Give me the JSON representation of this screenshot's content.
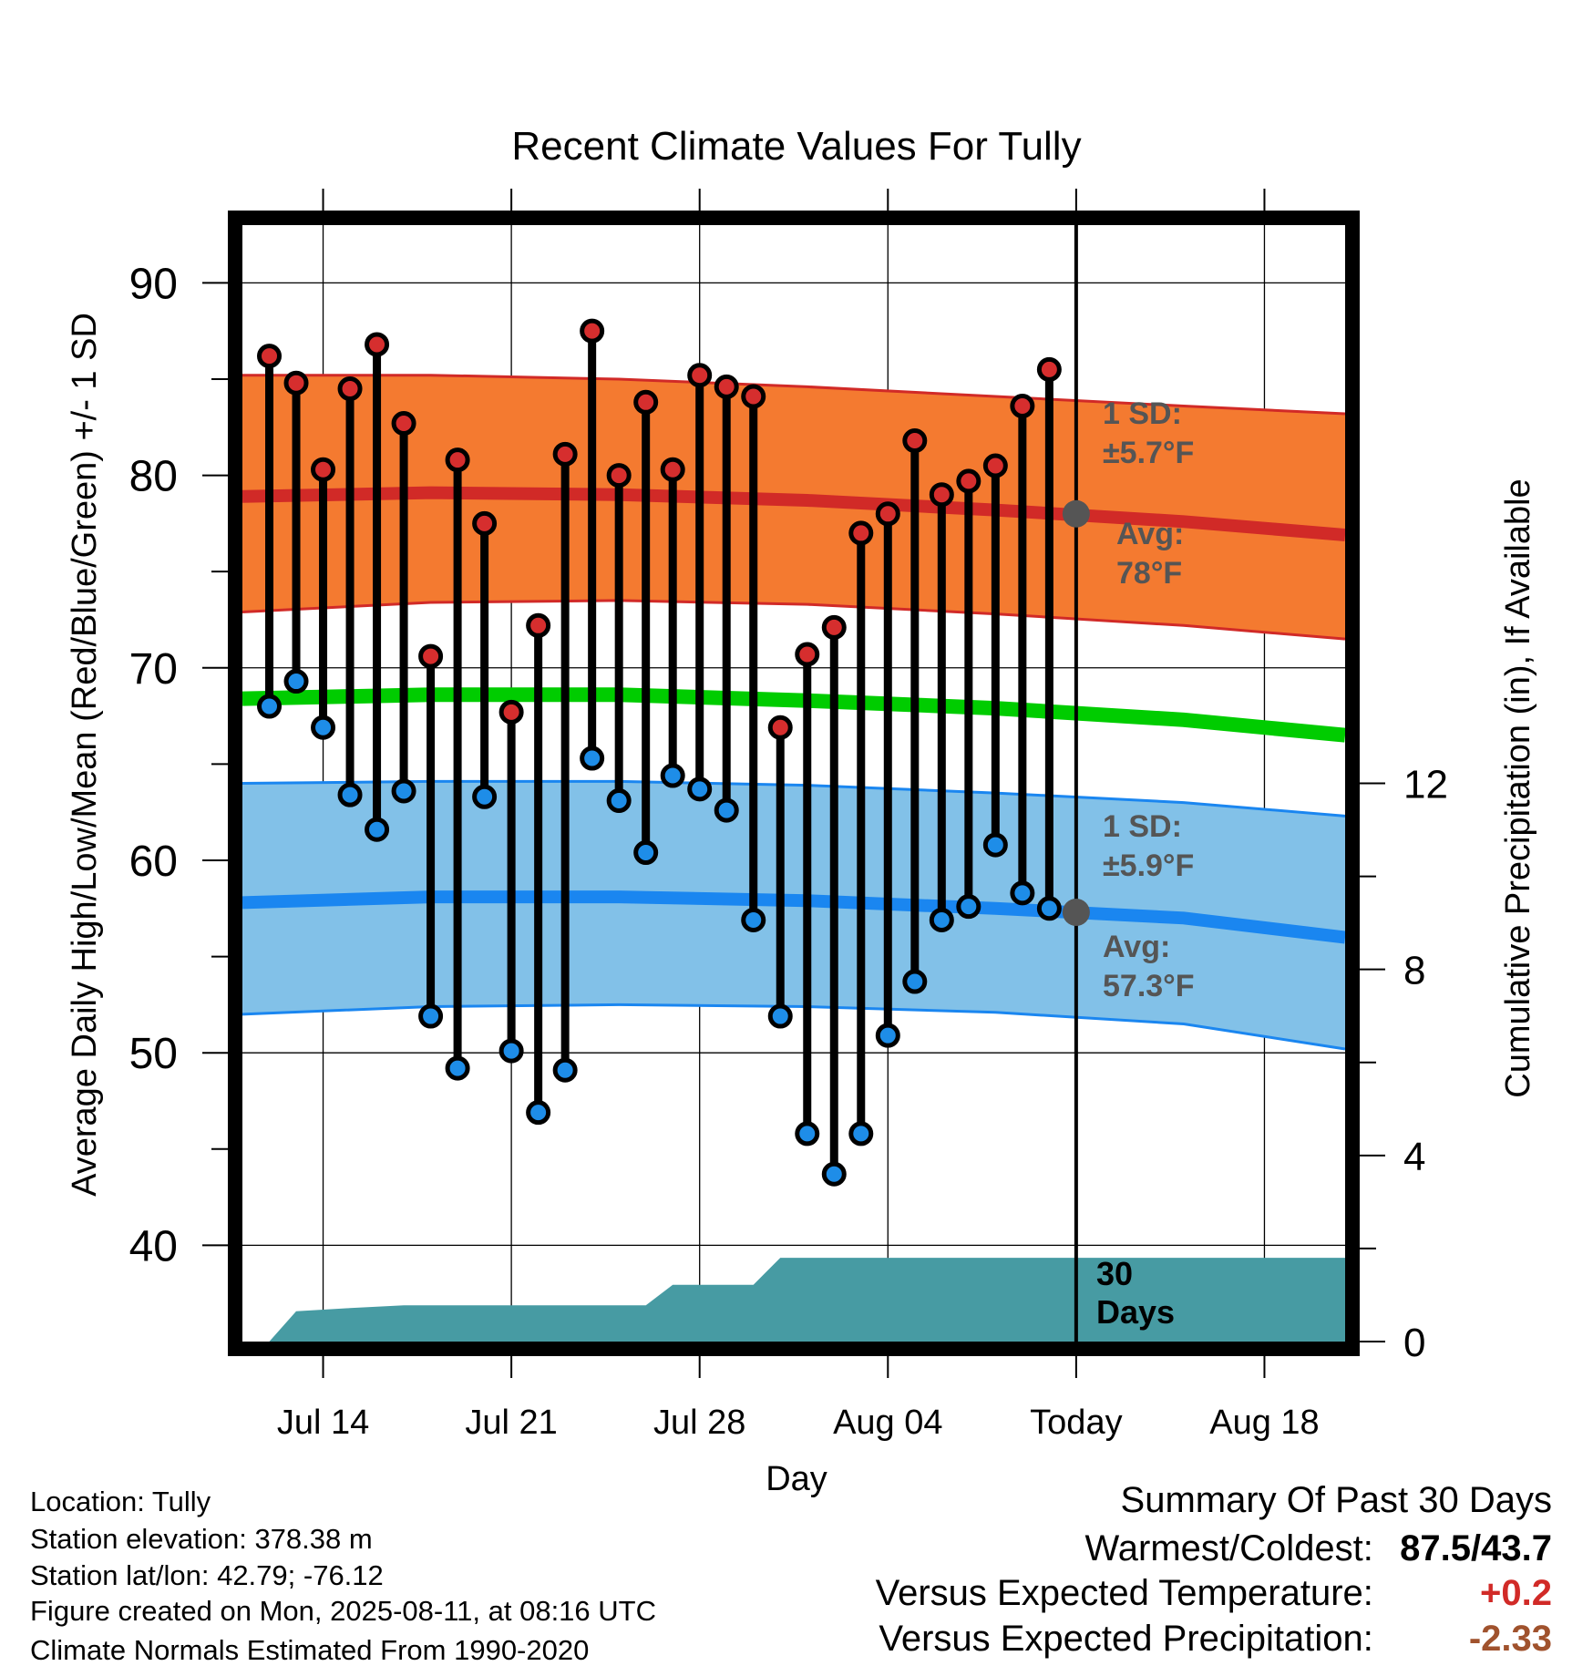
{
  "chart_data": {
    "type": "line",
    "title": "Recent Climate Values For Tully",
    "xlabel": "Day",
    "ylabel": "Average Daily High/Low/Mean (Red/Blue/Green) +/- 1 SD",
    "y2label": "Cumulative Precipitation (in), If Available",
    "ylim": [
      35,
      93
    ],
    "y2lim": [
      0,
      24
    ],
    "x_range": [
      "2025-07-11",
      "2025-08-21"
    ],
    "x_ticks": [
      {
        "date": "2025-07-14",
        "label": "Jul 14"
      },
      {
        "date": "2025-07-21",
        "label": "Jul 21"
      },
      {
        "date": "2025-07-28",
        "label": "Jul 28"
      },
      {
        "date": "2025-08-04",
        "label": "Aug 04"
      },
      {
        "date": "2025-08-11",
        "label": "Today"
      },
      {
        "date": "2025-08-18",
        "label": "Aug 18"
      }
    ],
    "y_ticks": [
      40,
      50,
      60,
      70,
      80,
      90
    ],
    "y2_ticks": [
      0,
      4,
      8,
      12
    ],
    "grid": true,
    "today": "2025-08-11",
    "observed": {
      "dates": [
        "2025-07-12",
        "2025-07-13",
        "2025-07-14",
        "2025-07-15",
        "2025-07-16",
        "2025-07-17",
        "2025-07-18",
        "2025-07-19",
        "2025-07-20",
        "2025-07-21",
        "2025-07-22",
        "2025-07-23",
        "2025-07-24",
        "2025-07-25",
        "2025-07-26",
        "2025-07-27",
        "2025-07-28",
        "2025-07-29",
        "2025-07-30",
        "2025-07-31",
        "2025-08-01",
        "2025-08-02",
        "2025-08-03",
        "2025-08-04",
        "2025-08-05",
        "2025-08-06",
        "2025-08-07",
        "2025-08-08",
        "2025-08-09",
        "2025-08-10"
      ],
      "high": [
        86.2,
        84.8,
        80.3,
        84.5,
        86.8,
        82.7,
        70.6,
        80.8,
        77.5,
        67.7,
        72.2,
        81.1,
        87.5,
        80.0,
        83.8,
        80.3,
        85.2,
        84.6,
        84.1,
        66.9,
        70.7,
        72.1,
        77.0,
        78.0,
        81.8,
        79.0,
        79.7,
        80.5,
        83.6,
        85.5
      ],
      "low": [
        68.0,
        69.3,
        66.9,
        63.4,
        61.6,
        63.6,
        51.9,
        49.2,
        63.3,
        50.1,
        46.9,
        49.1,
        65.3,
        63.1,
        60.4,
        64.4,
        63.7,
        62.6,
        56.9,
        51.9,
        45.8,
        43.7,
        45.8,
        50.9,
        53.7,
        56.9,
        57.6,
        60.8,
        58.3,
        57.5
      ]
    },
    "normals": {
      "dates": [
        "2025-07-11",
        "2025-07-18",
        "2025-07-25",
        "2025-08-01",
        "2025-08-08",
        "2025-08-15",
        "2025-08-21"
      ],
      "high_mean": [
        78.9,
        79.1,
        79.0,
        78.7,
        78.2,
        77.6,
        76.9
      ],
      "high_upper": [
        85.2,
        85.2,
        85.0,
        84.6,
        84.1,
        83.6,
        83.2
      ],
      "high_lower": [
        72.9,
        73.4,
        73.5,
        73.3,
        72.8,
        72.2,
        71.5
      ],
      "low_mean": [
        57.8,
        58.1,
        58.1,
        57.9,
        57.5,
        57.0,
        56.0
      ],
      "low_upper": [
        64.0,
        64.1,
        64.1,
        63.9,
        63.5,
        63.0,
        62.3
      ],
      "low_lower": [
        52.0,
        52.4,
        52.5,
        52.4,
        52.1,
        51.5,
        50.2
      ],
      "mean": [
        68.4,
        68.6,
        68.6,
        68.3,
        67.9,
        67.3,
        66.5
      ]
    },
    "precip": {
      "dates": [
        "2025-07-12",
        "2025-07-13",
        "2025-07-15",
        "2025-07-17",
        "2025-07-26",
        "2025-07-27",
        "2025-07-30",
        "2025-07-31",
        "2025-08-21"
      ],
      "values": [
        0.0,
        0.65,
        0.72,
        0.78,
        0.78,
        1.22,
        1.22,
        1.8,
        1.8
      ]
    },
    "annotations": {
      "high_sd_line1": "1 SD:",
      "high_sd_line2": "±5.7°F",
      "high_avg_line1": "Avg:",
      "high_avg_line2": "78°F",
      "low_sd_line1": "1 SD:",
      "low_sd_line2": "±5.9°F",
      "low_avg_line1": "Avg:",
      "low_avg_line2": "57.3°F",
      "days_line1": "30",
      "days_line2": "Days",
      "today_high_avg": 78,
      "today_low_avg": 57.3
    },
    "colors": {
      "high_band": "#f47a30",
      "high_line": "#d12a27",
      "low_band": "#82c1e8",
      "low_line": "#1a86f0",
      "mean_line": "#00cc00",
      "precip": "#479ba3",
      "high_dot": "#d62e2e",
      "low_dot": "#1e8de8"
    }
  },
  "station": {
    "location": "Location: Tully",
    "elevation": "Station elevation: 378.38 m",
    "latlon": "Station lat/lon: 42.79; -76.12",
    "created": "Figure created on Mon, 2025-08-11, at 08:16 UTC",
    "normals": "Climate Normals Estimated From 1990-2020"
  },
  "summary": {
    "heading": "Summary Of Past 30 Days",
    "warm_cold_label": "Warmest/Coldest:",
    "warm_cold_value": "87.5/43.7",
    "temp_label": "Versus Expected Temperature:",
    "temp_value": "+0.2",
    "precip_label": "Versus Expected Precipitation:",
    "precip_value": "-2.33",
    "temp_color": "#d12a27",
    "precip_color": "#a0522d"
  }
}
